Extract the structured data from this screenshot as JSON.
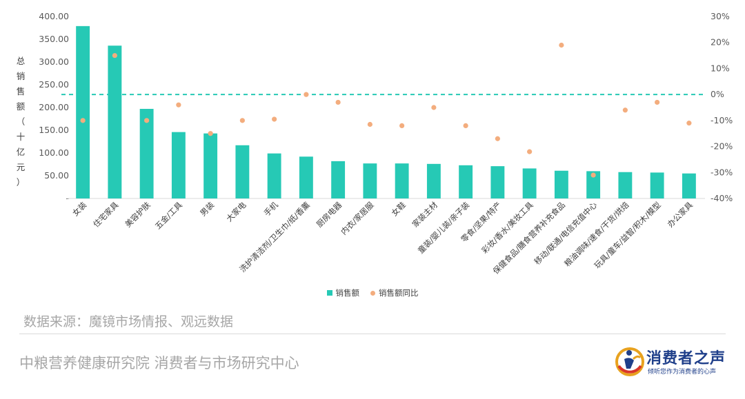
{
  "chart_data": {
    "type": "bar",
    "ylabel": "总销售额（十亿元）",
    "y_ticks": [
      "400.00",
      "350.00",
      "300.00",
      "250.00",
      "200.00",
      "150.00",
      "100.00",
      "50.00",
      "-"
    ],
    "y2_ticks": [
      "30%",
      "20%",
      "10%",
      "0%",
      "-10%",
      "-20%",
      "-30%",
      "-40%"
    ],
    "ylim": [
      0,
      400
    ],
    "y2lim": [
      -40,
      30
    ],
    "categories": [
      "女装",
      "住宅家具",
      "美容护肤",
      "五金/工具",
      "男装",
      "大家电",
      "手机",
      "洗护清洁剂/卫生巾/纸/香薰",
      "厨房电器",
      "内衣/家居服",
      "女鞋",
      "家装主材",
      "童装/婴儿装/亲子装",
      "零食/坚果/特产",
      "彩妆/香水/美妆工具",
      "保健食品/膳食营养补充食品",
      "移动/联通/电信充值中心",
      "粮油调味/速食/干货/烘焙",
      "玩具/童车/益智/积木/模型",
      "办公家具"
    ],
    "series": [
      {
        "name": "销售额",
        "kind": "bar",
        "color": "#26c9b5",
        "values": [
          379,
          336,
          197,
          146,
          143,
          117,
          99,
          92,
          82,
          77,
          77,
          76,
          73,
          71,
          66,
          61,
          60,
          58,
          57,
          55
        ]
      },
      {
        "name": "销售额同比",
        "kind": "scatter",
        "axis": "right",
        "color": "#f3ad7e",
        "values": [
          -10,
          15,
          -10,
          -4,
          -15,
          -10,
          -9.5,
          0,
          -3,
          -11.5,
          -12,
          -5,
          -12,
          -17,
          -22,
          19,
          -31,
          -6,
          -3,
          -11
        ]
      }
    ],
    "reference_line": {
      "axis": "right",
      "value": 0,
      "style": "dashed",
      "color": "#26c9b5"
    },
    "grid": false,
    "legend_position": "bottom"
  },
  "legend": {
    "bar_label": "销售额",
    "dot_label": "销售额同比"
  },
  "footer": {
    "source": "数据来源：魔镜市场情报、观远数据",
    "org": "中粮营养健康研究院 消费者与市场研究中心"
  },
  "logo": {
    "title": "消费者之声",
    "subtitle": "倾听您作为消费者的心声"
  }
}
